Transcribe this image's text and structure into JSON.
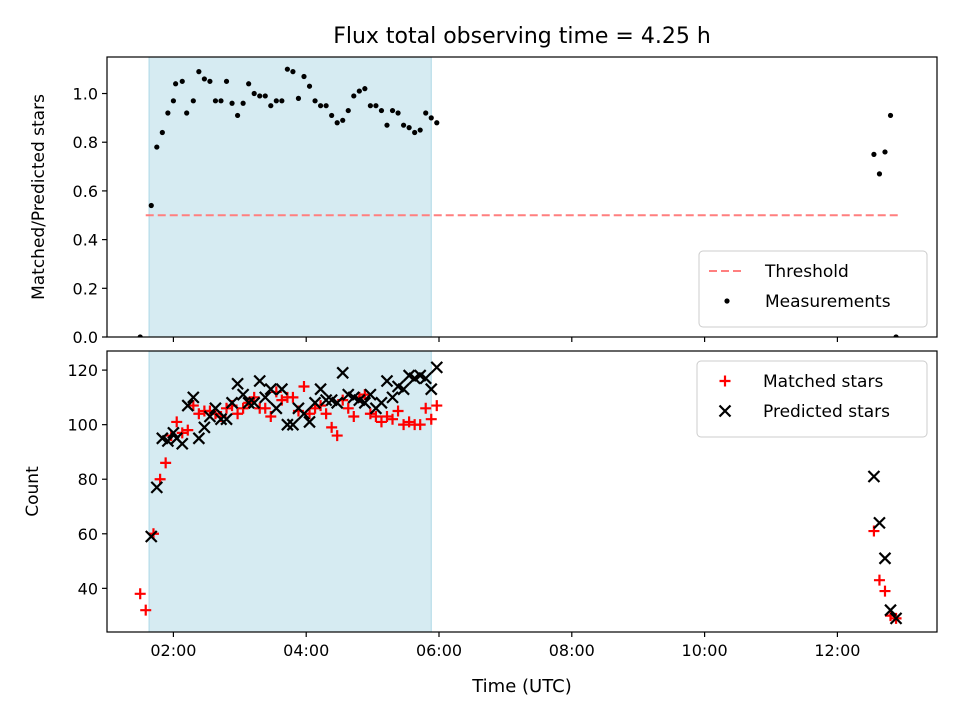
{
  "chart_data": {
    "type": "scatter",
    "title": "Flux total observing time = 4.25 h",
    "xlabel": "Time (UTC)",
    "x_unit": "hours UTC",
    "xlim": [
      "01:00",
      "13:30"
    ],
    "xticks": [
      "02:00",
      "04:00",
      "06:00",
      "08:00",
      "10:00",
      "12:00"
    ],
    "observing_window": [
      "01:38",
      "05:53"
    ],
    "panels": [
      {
        "id": "ratio",
        "ylabel": "Matched/Predicted stars",
        "ylim": [
          0.0,
          1.15
        ],
        "yticks": [
          "0.0",
          "0.2",
          "0.4",
          "0.6",
          "0.8",
          "1.0"
        ],
        "legend_position": "lower-right",
        "threshold": {
          "name": "Threshold",
          "value": 0.5,
          "x_from": "01:35",
          "x_to": "12:55",
          "color": "#ff7f7f"
        },
        "series": [
          {
            "name": "Measurements",
            "marker": "dot",
            "color": "#000000",
            "points": [
              [
                "01:30",
                0.0
              ],
              [
                "01:40",
                0.54
              ],
              [
                "01:45",
                0.78
              ],
              [
                "01:50",
                0.84
              ],
              [
                "01:55",
                0.92
              ],
              [
                "02:00",
                0.97
              ],
              [
                "02:02",
                1.04
              ],
              [
                "02:08",
                1.05
              ],
              [
                "02:12",
                0.92
              ],
              [
                "02:18",
                0.97
              ],
              [
                "02:23",
                1.09
              ],
              [
                "02:28",
                1.06
              ],
              [
                "02:33",
                1.05
              ],
              [
                "02:38",
                0.97
              ],
              [
                "02:43",
                0.97
              ],
              [
                "02:48",
                1.05
              ],
              [
                "02:53",
                0.96
              ],
              [
                "02:58",
                0.91
              ],
              [
                "03:03",
                0.96
              ],
              [
                "03:08",
                1.04
              ],
              [
                "03:13",
                1.0
              ],
              [
                "03:18",
                0.99
              ],
              [
                "03:23",
                0.99
              ],
              [
                "03:28",
                0.95
              ],
              [
                "03:33",
                0.97
              ],
              [
                "03:38",
                0.97
              ],
              [
                "03:43",
                1.1
              ],
              [
                "03:48",
                1.09
              ],
              [
                "03:53",
                0.98
              ],
              [
                "03:58",
                1.07
              ],
              [
                "04:03",
                1.03
              ],
              [
                "04:08",
                0.97
              ],
              [
                "04:13",
                0.95
              ],
              [
                "04:18",
                0.95
              ],
              [
                "04:23",
                0.91
              ],
              [
                "04:28",
                0.88
              ],
              [
                "04:33",
                0.89
              ],
              [
                "04:38",
                0.93
              ],
              [
                "04:43",
                0.99
              ],
              [
                "04:48",
                1.01
              ],
              [
                "04:53",
                1.02
              ],
              [
                "04:58",
                0.95
              ],
              [
                "05:03",
                0.95
              ],
              [
                "05:08",
                0.93
              ],
              [
                "05:13",
                0.87
              ],
              [
                "05:18",
                0.93
              ],
              [
                "05:23",
                0.92
              ],
              [
                "05:28",
                0.87
              ],
              [
                "05:33",
                0.86
              ],
              [
                "05:38",
                0.84
              ],
              [
                "05:43",
                0.85
              ],
              [
                "05:48",
                0.92
              ],
              [
                "05:53",
                0.9
              ],
              [
                "05:58",
                0.88
              ],
              [
                "12:33",
                0.75
              ],
              [
                "12:38",
                0.67
              ],
              [
                "12:43",
                0.76
              ],
              [
                "12:48",
                0.91
              ],
              [
                "12:53",
                0.0
              ]
            ]
          }
        ]
      },
      {
        "id": "counts",
        "ylabel": "Count",
        "ylim": [
          24,
          127
        ],
        "yticks": [
          "40",
          "60",
          "80",
          "100",
          "120"
        ],
        "legend_position": "upper-right",
        "series": [
          {
            "name": "Matched stars",
            "marker": "plus",
            "color": "#ff0000",
            "points": [
              [
                "01:30",
                38
              ],
              [
                "01:35",
                32
              ],
              [
                "01:42",
                60
              ],
              [
                "01:48",
                80
              ],
              [
                "01:53",
                86
              ],
              [
                "01:58",
                96
              ],
              [
                "02:03",
                101
              ],
              [
                "02:08",
                97
              ],
              [
                "02:13",
                98
              ],
              [
                "02:18",
                107
              ],
              [
                "02:23",
                104
              ],
              [
                "02:28",
                105
              ],
              [
                "02:33",
                105
              ],
              [
                "02:38",
                104
              ],
              [
                "02:43",
                103
              ],
              [
                "02:48",
                106
              ],
              [
                "02:53",
                107
              ],
              [
                "02:58",
                104
              ],
              [
                "03:03",
                106
              ],
              [
                "03:08",
                108
              ],
              [
                "03:13",
                110
              ],
              [
                "03:18",
                106
              ],
              [
                "03:23",
                106
              ],
              [
                "03:28",
                103
              ],
              [
                "03:33",
                112
              ],
              [
                "03:38",
                109
              ],
              [
                "03:43",
                110
              ],
              [
                "03:48",
                110
              ],
              [
                "03:53",
                105
              ],
              [
                "03:58",
                114
              ],
              [
                "04:03",
                104
              ],
              [
                "04:08",
                106
              ],
              [
                "04:13",
                107
              ],
              [
                "04:18",
                104
              ],
              [
                "04:23",
                99
              ],
              [
                "04:28",
                96
              ],
              [
                "04:33",
                109
              ],
              [
                "04:38",
                106
              ],
              [
                "04:43",
                103
              ],
              [
                "04:48",
                110
              ],
              [
                "04:53",
                111
              ],
              [
                "04:58",
                104
              ],
              [
                "05:03",
                103
              ],
              [
                "05:08",
                101
              ],
              [
                "05:13",
                103
              ],
              [
                "05:18",
                102
              ],
              [
                "05:23",
                105
              ],
              [
                "05:28",
                100
              ],
              [
                "05:33",
                101
              ],
              [
                "05:38",
                100
              ],
              [
                "05:43",
                100
              ],
              [
                "05:48",
                106
              ],
              [
                "05:53",
                102
              ],
              [
                "05:58",
                107
              ],
              [
                "12:33",
                61
              ],
              [
                "12:38",
                43
              ],
              [
                "12:43",
                39
              ],
              [
                "12:48",
                30
              ],
              [
                "12:53",
                29
              ]
            ]
          },
          {
            "name": "Predicted stars",
            "marker": "x",
            "color": "#000000",
            "points": [
              [
                "01:40",
                59
              ],
              [
                "01:45",
                77
              ],
              [
                "01:50",
                95
              ],
              [
                "01:55",
                94
              ],
              [
                "02:00",
                97
              ],
              [
                "02:03",
                95
              ],
              [
                "02:08",
                93
              ],
              [
                "02:13",
                107
              ],
              [
                "02:18",
                110
              ],
              [
                "02:23",
                95
              ],
              [
                "02:28",
                99
              ],
              [
                "02:33",
                103
              ],
              [
                "02:38",
                106
              ],
              [
                "02:43",
                102
              ],
              [
                "02:48",
                102
              ],
              [
                "02:53",
                108
              ],
              [
                "02:58",
                115
              ],
              [
                "03:03",
                111
              ],
              [
                "03:08",
                108
              ],
              [
                "03:13",
                108
              ],
              [
                "03:18",
                116
              ],
              [
                "03:23",
                110
              ],
              [
                "03:28",
                113
              ],
              [
                "03:33",
                106
              ],
              [
                "03:38",
                113
              ],
              [
                "03:43",
                100
              ],
              [
                "03:48",
                100
              ],
              [
                "03:53",
                106
              ],
              [
                "03:58",
                104
              ],
              [
                "04:03",
                101
              ],
              [
                "04:08",
                108
              ],
              [
                "04:13",
                113
              ],
              [
                "04:18",
                109
              ],
              [
                "04:23",
                109
              ],
              [
                "04:28",
                108
              ],
              [
                "04:33",
                119
              ],
              [
                "04:38",
                111
              ],
              [
                "04:43",
                110
              ],
              [
                "04:48",
                109
              ],
              [
                "04:53",
                108
              ],
              [
                "04:58",
                111
              ],
              [
                "05:03",
                106
              ],
              [
                "05:08",
                108
              ],
              [
                "05:13",
                116
              ],
              [
                "05:18",
                110
              ],
              [
                "05:23",
                114
              ],
              [
                "05:28",
                113
              ],
              [
                "05:33",
                118
              ],
              [
                "05:38",
                117
              ],
              [
                "05:43",
                118
              ],
              [
                "05:48",
                117
              ],
              [
                "05:53",
                113
              ],
              [
                "05:58",
                121
              ],
              [
                "12:33",
                81
              ],
              [
                "12:38",
                64
              ],
              [
                "12:43",
                51
              ],
              [
                "12:48",
                32
              ],
              [
                "12:53",
                29
              ]
            ]
          }
        ]
      }
    ]
  }
}
